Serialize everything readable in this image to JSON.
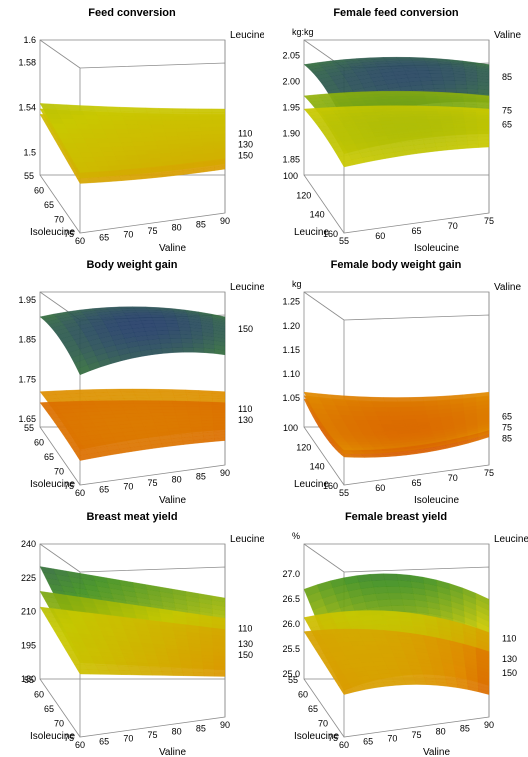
{
  "chart_data": [
    {
      "type": "surface",
      "title": "Feed conversion",
      "unit": "",
      "xlabel": "Valine",
      "ylabel": "Isoleucine",
      "zlabel": "Leucine",
      "x_ticks": [
        "60",
        "65",
        "70",
        "75",
        "80",
        "85",
        "90"
      ],
      "y_ticks": [
        "55",
        "60",
        "65",
        "70",
        "75"
      ],
      "z_ticks": [
        "1.5",
        "1.54",
        "1.58",
        "1.6"
      ],
      "zlim": [
        1.48,
        1.6
      ],
      "series": [
        {
          "name": "150",
          "center": 1.525,
          "x_curv": 0.05,
          "y_slope": 0.01,
          "x_slope": -0.005
        },
        {
          "name": "130",
          "center": 1.53,
          "x_curv": 0.045,
          "y_slope": 0.01,
          "x_slope": -0.005
        },
        {
          "name": "110",
          "center": 1.535,
          "x_curv": 0.04,
          "y_slope": 0.01,
          "x_slope": -0.005
        }
      ]
    },
    {
      "type": "surface",
      "title": "Female feed conversion",
      "unit": "kg:kg",
      "xlabel": "Isoleucine",
      "ylabel": "Leucine",
      "zlabel": "Valine",
      "x_ticks": [
        "55",
        "60",
        "65",
        "70",
        "75"
      ],
      "y_ticks": [
        "100",
        "120",
        "140",
        "160"
      ],
      "z_ticks": [
        "1.85",
        "1.90",
        "1.95",
        "2.00",
        "2.05"
      ],
      "zlim": [
        1.82,
        2.08
      ],
      "series": [
        {
          "name": "85",
          "center": 2.06,
          "x_curv": -0.22,
          "y_curv": -0.2,
          "y_slope": 0.0,
          "x_slope": 0.0
        },
        {
          "name": "75",
          "center": 1.99,
          "x_curv": -0.14,
          "y_curv": -0.13,
          "y_slope": 0.0,
          "x_slope": 0.0
        },
        {
          "name": "65",
          "center": 1.96,
          "x_curv": -0.1,
          "y_curv": -0.1,
          "y_slope": 0.0,
          "x_slope": 0.0
        }
      ]
    },
    {
      "type": "surface",
      "title": "Body weight gain",
      "unit": "",
      "xlabel": "Valine",
      "ylabel": "Isoleucine",
      "zlabel": "Leucine",
      "x_ticks": [
        "60",
        "65",
        "70",
        "75",
        "80",
        "85",
        "90"
      ],
      "y_ticks": [
        "55",
        "60",
        "65",
        "70",
        "75"
      ],
      "z_ticks": [
        "1.65",
        "1.75",
        "1.85",
        "1.95"
      ],
      "zlim": [
        1.63,
        1.97
      ],
      "series": [
        {
          "name": "150",
          "center": 1.95,
          "x_curv": -0.3,
          "y_curv": -0.2,
          "y_slope": 0.0,
          "x_slope": 0.0
        },
        {
          "name": "110",
          "center": 1.73,
          "x_curv": -0.08,
          "y_curv": -0.05,
          "y_slope": 0.0,
          "x_slope": 0.0
        },
        {
          "name": "130",
          "center": 1.7,
          "x_curv": -0.06,
          "y_curv": -0.04,
          "y_slope": 0.0,
          "x_slope": 0.0
        }
      ]
    },
    {
      "type": "surface",
      "title": "Female body weight gain",
      "unit": "kg",
      "xlabel": "Isoleucine",
      "ylabel": "Leucine",
      "zlabel": "Valine",
      "x_ticks": [
        "55",
        "60",
        "65",
        "70",
        "75"
      ],
      "y_ticks": [
        "100",
        "120",
        "140",
        "160"
      ],
      "z_ticks": [
        "1.05",
        "1.10",
        "1.15",
        "1.20",
        "1.25"
      ],
      "zlim": [
        0.99,
        1.27
      ],
      "series": [
        {
          "name": "85",
          "center": 1.02,
          "x_curv": 0.2,
          "y_curv": 0.2,
          "y_slope": 0.0,
          "x_slope": 0.0
        },
        {
          "name": "75",
          "center": 1.03,
          "x_curv": 0.18,
          "y_curv": 0.18,
          "y_slope": 0.0,
          "x_slope": 0.0
        },
        {
          "name": "65",
          "center": 1.04,
          "x_curv": 0.16,
          "y_curv": 0.16,
          "y_slope": 0.0,
          "x_slope": 0.0
        }
      ]
    },
    {
      "type": "surface",
      "title": "Breast meat yield",
      "unit": "",
      "xlabel": "Valine",
      "ylabel": "Isoleucine",
      "zlabel": "Leucine",
      "x_ticks": [
        "60",
        "65",
        "70",
        "75",
        "80",
        "85",
        "90"
      ],
      "y_ticks": [
        "55",
        "60",
        "65",
        "70",
        "75"
      ],
      "z_ticks": [
        "180",
        "195",
        "210",
        "225",
        "240"
      ],
      "zlim": [
        180,
        240
      ],
      "series": [
        {
          "name": "110",
          "center": 218,
          "x_curv": 0.0,
          "y_curv": 0.0,
          "y_slope": 10,
          "x_slope": -14
        },
        {
          "name": "130",
          "center": 210,
          "x_curv": 0.0,
          "y_curv": 0.0,
          "y_slope": 6,
          "x_slope": -12
        },
        {
          "name": "150",
          "center": 205,
          "x_curv": 0.0,
          "y_curv": 0.0,
          "y_slope": 4,
          "x_slope": -10
        }
      ]
    },
    {
      "type": "surface",
      "title": "Female breast yield",
      "unit": "%",
      "xlabel": "Valine",
      "ylabel": "Isoleucine",
      "zlabel": "Leucine",
      "x_ticks": [
        "60",
        "65",
        "70",
        "75",
        "80",
        "85",
        "90"
      ],
      "y_ticks": [
        "55",
        "60",
        "65",
        "70",
        "75"
      ],
      "z_ticks": [
        "25.0",
        "25.5",
        "26.0",
        "26.5",
        "27.0"
      ],
      "zlim": [
        24.9,
        27.6
      ],
      "series": [
        {
          "name": "110",
          "center": 26.6,
          "x_curv": -0.6,
          "y_curv": 0.0,
          "y_slope": 0.8,
          "x_slope": -0.2
        },
        {
          "name": "130",
          "center": 26.1,
          "x_curv": -0.4,
          "y_curv": 0.0,
          "y_slope": 0.3,
          "x_slope": -0.3
        },
        {
          "name": "150",
          "center": 25.8,
          "x_curv": -0.3,
          "y_curv": 0.0,
          "y_slope": 0.1,
          "x_slope": -0.4
        }
      ]
    }
  ],
  "colors": {
    "low": "#cc2200",
    "mid_low": "#e08a00",
    "mid": "#c8c800",
    "mid_high": "#3f8f1f",
    "high": "#1a237e",
    "box": "#8c8c8c"
  }
}
